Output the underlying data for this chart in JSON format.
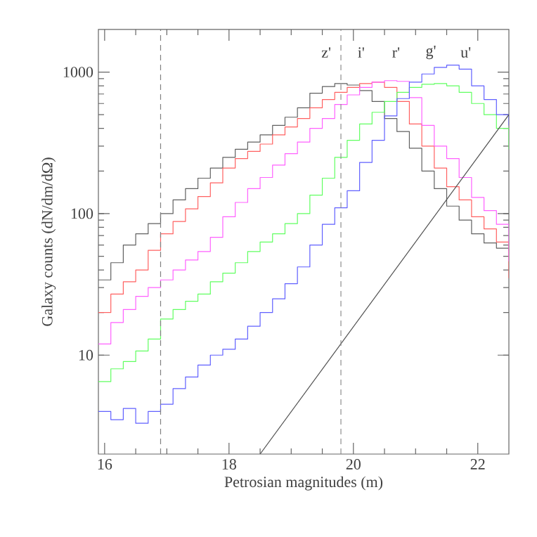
{
  "chart_data": {
    "type": "step",
    "xlabel": "Petrosian magnitudes (m)",
    "ylabel": "Galaxy counts (dN/dm/dΩ)",
    "log": "y",
    "xlim": [
      15.9,
      22.5
    ],
    "ylim": [
      2,
      2000
    ],
    "xticks": [
      16,
      18,
      20,
      22
    ],
    "yticks": [
      10,
      100,
      1000
    ],
    "grid": false,
    "x": [
      15.9,
      16.1,
      16.3,
      16.5,
      16.7,
      16.9,
      17.1,
      17.3,
      17.5,
      17.7,
      17.9,
      18.1,
      18.3,
      18.5,
      18.7,
      18.9,
      19.1,
      19.3,
      19.5,
      19.7,
      19.9,
      20.1,
      20.3,
      20.5,
      20.7,
      20.9,
      21.1,
      21.3,
      21.5,
      21.7,
      21.9,
      22.1,
      22.3,
      22.5
    ],
    "series": [
      {
        "color": "#606060",
        "values": [
          34,
          45,
          60,
          72,
          85,
          100,
          125,
          150,
          178,
          210,
          250,
          285,
          320,
          360,
          420,
          480,
          560,
          710,
          790,
          830,
          810,
          740,
          620,
          470,
          380,
          290,
          200,
          150,
          113,
          90,
          72,
          62,
          57,
          55
        ]
      },
      {
        "color": "#ff6060",
        "values": [
          20,
          27,
          33,
          40,
          55,
          72,
          88,
          108,
          132,
          165,
          210,
          245,
          275,
          310,
          360,
          410,
          470,
          560,
          640,
          720,
          780,
          830,
          850,
          780,
          620,
          430,
          300,
          210,
          155,
          125,
          95,
          78,
          63,
          35
        ]
      },
      {
        "color": "#ff60ff",
        "values": [
          12,
          17,
          21,
          26,
          30,
          34,
          40,
          47,
          54,
          68,
          95,
          120,
          150,
          180,
          220,
          265,
          320,
          400,
          470,
          590,
          690,
          780,
          850,
          870,
          860,
          660,
          420,
          300,
          245,
          180,
          130,
          105,
          84,
          46
        ]
      },
      {
        "color": "#60ff60",
        "values": [
          6.5,
          8,
          9,
          10.7,
          13,
          18,
          21,
          24,
          27,
          33,
          38,
          45,
          54,
          63,
          72,
          85,
          100,
          135,
          178,
          250,
          330,
          430,
          520,
          620,
          720,
          780,
          820,
          830,
          800,
          720,
          600,
          500,
          400,
          285
        ]
      },
      {
        "color": "#6060ff",
        "values": [
          4,
          3.5,
          4.2,
          3.3,
          4,
          4.5,
          5.8,
          7,
          8.5,
          10,
          11,
          13,
          16,
          20,
          25,
          32,
          42,
          60,
          84,
          110,
          145,
          230,
          330,
          490,
          650,
          850,
          970,
          1080,
          1120,
          1050,
          800,
          640,
          500,
          420
        ]
      },
      {
        "type": "line",
        "color": "#505050",
        "x": [
          18.5,
          22.5
        ],
        "values": [
          2,
          500
        ]
      }
    ],
    "ref_lines": [
      {
        "axis": "x",
        "value": 16.9,
        "color": "#808080",
        "line_style": "dashed"
      },
      {
        "axis": "x",
        "value": 19.8,
        "color": "#808080",
        "line_style": "dashed"
      }
    ],
    "annotations": [
      "z'",
      "i'",
      "r'",
      "g'",
      "u'"
    ]
  }
}
